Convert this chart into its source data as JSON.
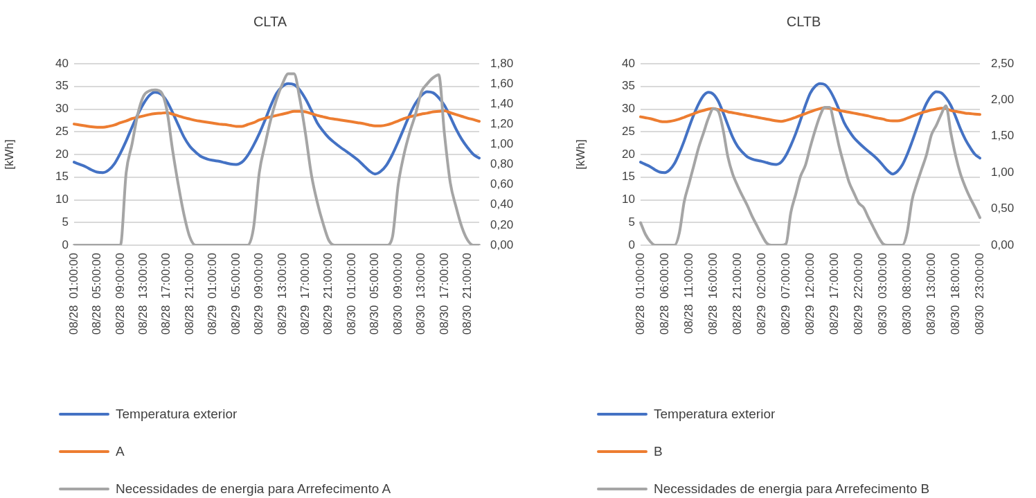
{
  "chart_data": [
    {
      "type": "line",
      "title": "CLTA",
      "ylabel": "[kWh]",
      "grid": "y",
      "legend": "bottom",
      "categories": [
        "08/28  01:00:00",
        null,
        null,
        null,
        "08/28  05:00:00",
        null,
        null,
        null,
        "08/28  09:00:00",
        null,
        null,
        null,
        "08/28  13:00:00",
        null,
        null,
        null,
        "08/28  17:00:00",
        null,
        null,
        null,
        "08/28  21:00:00",
        null,
        null,
        null,
        "08/29  01:00:00",
        null,
        null,
        null,
        "08/29  05:00:00",
        null,
        null,
        null,
        "08/29  09:00:00",
        null,
        null,
        null,
        "08/29  13:00:00",
        null,
        null,
        null,
        "08/29  17:00:00",
        null,
        null,
        null,
        "08/29  21:00:00",
        null,
        null,
        null,
        "08/30  01:00:00",
        null,
        null,
        null,
        "08/30  05:00:00",
        null,
        null,
        null,
        "08/30  09:00:00",
        null,
        null,
        null,
        "08/30  13:00:00",
        null,
        null,
        null,
        "08/30  17:00:00",
        null,
        null,
        null,
        "08/30  21:00:00",
        null,
        null
      ],
      "ylim": [
        0,
        40
      ],
      "yticks": [
        0,
        5,
        10,
        15,
        20,
        25,
        30,
        35,
        40
      ],
      "y2lim": [
        0,
        1.8
      ],
      "y2ticks": [
        {
          "value": 0,
          "label": "0,00"
        },
        {
          "value": 0.2,
          "label": "0,20"
        },
        {
          "value": 0.4,
          "label": "0,40"
        },
        {
          "value": 0.6,
          "label": "0,60"
        },
        {
          "value": 0.8,
          "label": "0,80"
        },
        {
          "value": 1,
          "label": "1,00"
        },
        {
          "value": 1.2,
          "label": "1,20"
        },
        {
          "value": 1.4,
          "label": "1,40"
        },
        {
          "value": 1.6,
          "label": "1,60"
        },
        {
          "value": 1.8,
          "label": "1,80"
        }
      ],
      "series": [
        {
          "name": "Temperatura exterior",
          "color": "#4472c4",
          "values": [
            18.3,
            17.8,
            17.3,
            16.6,
            16.1,
            16.0,
            16.6,
            18.0,
            20.3,
            23.0,
            26.0,
            28.8,
            31.2,
            33.0,
            33.7,
            33.3,
            31.8,
            29.3,
            26.5,
            23.8,
            21.8,
            20.5,
            19.5,
            19.0,
            18.7,
            18.5,
            18.2,
            17.9,
            17.8,
            18.3,
            19.8,
            22.0,
            24.6,
            27.6,
            30.8,
            33.5,
            35.0,
            35.6,
            35.4,
            34.2,
            32.2,
            29.7,
            27.0,
            25.2,
            23.7,
            22.6,
            21.6,
            20.7,
            19.8,
            18.8,
            17.6,
            16.4,
            15.7,
            16.3,
            17.7,
            20.0,
            22.8,
            25.8,
            28.8,
            31.3,
            33.0,
            33.8,
            33.6,
            32.5,
            30.8,
            28.3,
            25.6,
            23.3,
            21.5,
            20.0,
            19.2
          ]
        },
        {
          "name": "A",
          "color": "#ed7d31",
          "values": [
            26.7,
            26.5,
            26.3,
            26.1,
            26.0,
            26.0,
            26.2,
            26.5,
            27.0,
            27.4,
            27.9,
            28.2,
            28.5,
            28.8,
            29.0,
            29.1,
            29.2,
            28.9,
            28.5,
            28.1,
            27.8,
            27.5,
            27.3,
            27.1,
            26.9,
            26.7,
            26.6,
            26.4,
            26.2,
            26.2,
            26.6,
            27.0,
            27.6,
            28.0,
            28.3,
            28.6,
            28.9,
            29.2,
            29.5,
            29.5,
            29.4,
            29.0,
            28.6,
            28.3,
            28.0,
            27.8,
            27.6,
            27.4,
            27.2,
            27.0,
            26.8,
            26.5,
            26.3,
            26.3,
            26.5,
            26.9,
            27.4,
            27.9,
            28.3,
            28.6,
            28.9,
            29.1,
            29.4,
            29.5,
            29.6,
            29.2,
            28.8,
            28.4,
            28.0,
            27.7,
            27.3
          ]
        },
        {
          "name": "Necessidades de energia para Arrefecimento A",
          "color": "#a5a5a5",
          "axis": "y2",
          "values": [
            0,
            0,
            0,
            0,
            0,
            0,
            0,
            0,
            0,
            0.72,
            1.0,
            1.3,
            1.48,
            1.53,
            1.54,
            1.52,
            1.35,
            0.95,
            0.6,
            0.3,
            0.08,
            0,
            0,
            0,
            0,
            0,
            0,
            0,
            0,
            0,
            0,
            0.17,
            0.72,
            1.0,
            1.25,
            1.45,
            1.6,
            1.7,
            1.7,
            1.45,
            1.1,
            0.7,
            0.43,
            0.22,
            0.05,
            0,
            0,
            0,
            0,
            0,
            0,
            0,
            0,
            0,
            0,
            0.08,
            0.6,
            0.9,
            1.12,
            1.3,
            1.52,
            1.6,
            1.66,
            1.69,
            1.1,
            0.62,
            0.38,
            0.18,
            0.05,
            0,
            0
          ]
        }
      ]
    },
    {
      "type": "line",
      "title": "CLTB",
      "ylabel": "[kWh]",
      "grid": "y",
      "legend": "bottom",
      "categories": [
        "08/28  01:00:00",
        null,
        null,
        null,
        null,
        "08/28  06:00:00",
        null,
        null,
        null,
        null,
        "08/28  11:00:00",
        null,
        null,
        null,
        null,
        "08/28  16:00:00",
        null,
        null,
        null,
        null,
        "08/28  21:00:00",
        null,
        null,
        null,
        null,
        "08/29  02:00:00",
        null,
        null,
        null,
        null,
        "08/29  07:00:00",
        null,
        null,
        null,
        null,
        "08/29  12:00:00",
        null,
        null,
        null,
        null,
        "08/29  17:00:00",
        null,
        null,
        null,
        null,
        "08/29  22:00:00",
        null,
        null,
        null,
        null,
        "08/30  03:00:00",
        null,
        null,
        null,
        null,
        "08/30  08:00:00",
        null,
        null,
        null,
        null,
        "08/30  13:00:00",
        null,
        null,
        null,
        null,
        "08/30  18:00:00",
        null,
        null,
        null,
        null,
        "08/30  23:00:00"
      ],
      "ylim": [
        0,
        40
      ],
      "yticks": [
        0,
        5,
        10,
        15,
        20,
        25,
        30,
        35,
        40
      ],
      "y2lim": [
        0,
        2.5
      ],
      "y2ticks": [
        {
          "value": 0,
          "label": "0,00"
        },
        {
          "value": 0.5,
          "label": "0,50"
        },
        {
          "value": 1,
          "label": "1,00"
        },
        {
          "value": 1.5,
          "label": "1,50"
        },
        {
          "value": 2,
          "label": "2,00"
        },
        {
          "value": 2.5,
          "label": "2,50"
        }
      ],
      "series": [
        {
          "name": "Temperatura exterior",
          "color": "#4472c4",
          "values": [
            18.3,
            17.8,
            17.3,
            16.6,
            16.1,
            16.0,
            16.6,
            18.0,
            20.3,
            23.0,
            26.0,
            28.8,
            31.2,
            33.0,
            33.7,
            33.3,
            31.8,
            29.3,
            26.5,
            23.8,
            21.8,
            20.5,
            19.5,
            19.0,
            18.7,
            18.5,
            18.2,
            17.9,
            17.8,
            18.3,
            19.8,
            22.0,
            24.6,
            27.6,
            30.8,
            33.5,
            35.0,
            35.6,
            35.4,
            34.2,
            32.2,
            29.7,
            27.0,
            25.2,
            23.7,
            22.6,
            21.6,
            20.7,
            19.8,
            18.8,
            17.6,
            16.4,
            15.7,
            16.3,
            17.7,
            20.0,
            22.8,
            25.8,
            28.8,
            31.3,
            33.0,
            33.8,
            33.6,
            32.5,
            30.8,
            28.3,
            25.6,
            23.3,
            21.5,
            20.0,
            19.2
          ]
        },
        {
          "name": "B",
          "color": "#ed7d31",
          "values": [
            28.3,
            28.1,
            27.9,
            27.6,
            27.3,
            27.2,
            27.3,
            27.5,
            27.8,
            28.2,
            28.6,
            29.0,
            29.4,
            29.7,
            30.0,
            30.1,
            29.9,
            29.7,
            29.4,
            29.2,
            29.0,
            28.8,
            28.6,
            28.4,
            28.2,
            28.0,
            27.8,
            27.6,
            27.4,
            27.3,
            27.5,
            27.8,
            28.2,
            28.6,
            29.0,
            29.4,
            29.8,
            30.1,
            30.3,
            30.2,
            30.0,
            29.7,
            29.5,
            29.3,
            29.1,
            28.9,
            28.7,
            28.5,
            28.2,
            28.0,
            27.8,
            27.5,
            27.4,
            27.4,
            27.6,
            28.0,
            28.4,
            28.8,
            29.2,
            29.5,
            29.8,
            30.0,
            30.2,
            30.1,
            29.7,
            29.5,
            29.3,
            29.1,
            29.0,
            28.9,
            28.8
          ]
        },
        {
          "name": "Necessidades de energia para Arrefecimento B",
          "color": "#a5a5a5",
          "axis": "y2",
          "values": [
            0.31,
            0.15,
            0.05,
            0,
            0,
            0,
            0,
            0,
            0.17,
            0.6,
            0.85,
            1.1,
            1.35,
            1.55,
            1.75,
            1.88,
            1.85,
            1.6,
            1.22,
            0.98,
            0.82,
            0.68,
            0.55,
            0.4,
            0.27,
            0.14,
            0.03,
            0,
            0,
            0,
            0.02,
            0.45,
            0.7,
            0.95,
            1.1,
            1.35,
            1.58,
            1.78,
            1.9,
            1.9,
            1.65,
            1.35,
            1.1,
            0.87,
            0.72,
            0.58,
            0.52,
            0.38,
            0.25,
            0.12,
            0.02,
            0,
            0,
            0,
            0,
            0.18,
            0.62,
            0.85,
            1.05,
            1.25,
            1.52,
            1.65,
            1.8,
            1.92,
            1.55,
            1.23,
            0.98,
            0.8,
            0.65,
            0.52,
            0.38
          ]
        }
      ]
    }
  ]
}
